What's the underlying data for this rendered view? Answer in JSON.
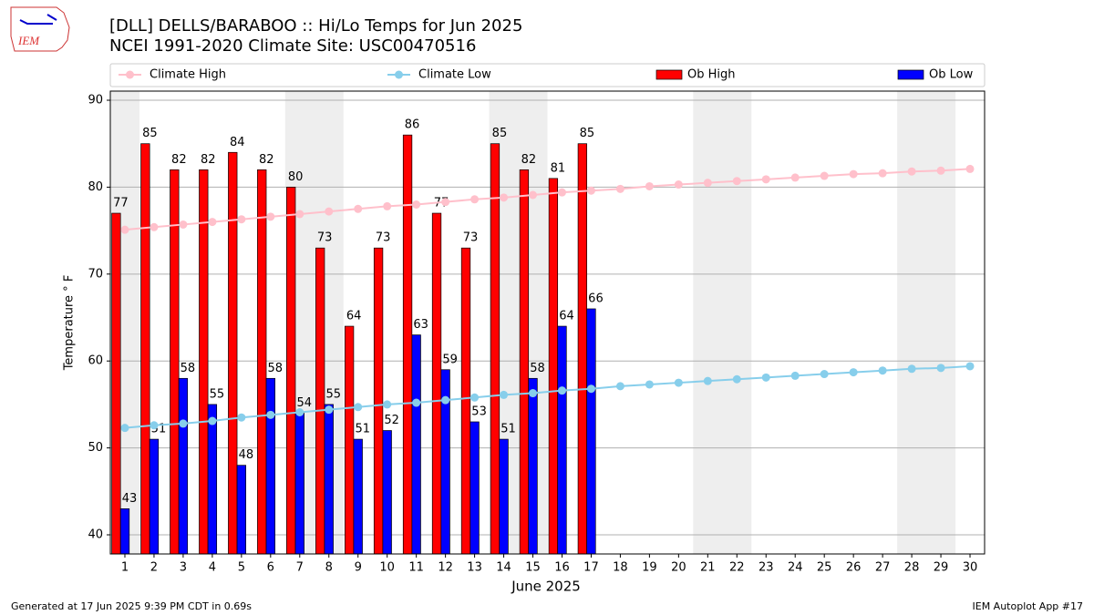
{
  "chart_data": {
    "type": "bar",
    "title": "[DLL] DELLS/BARABOO :: Hi/Lo Temps for Jun 2025",
    "subtitle": "NCEI 1991-2020 Climate Site: USC00470516",
    "logo_text": "IEM",
    "x_label": "June 2025",
    "y_label": "Temperature $^\\circ$F",
    "footer_left": "Generated at 17 Jun 2025 9:39 PM CDT in 0.69s",
    "footer_right": "IEM Autoplot App #17",
    "x": [
      1,
      2,
      3,
      4,
      5,
      6,
      7,
      8,
      9,
      10,
      11,
      12,
      13,
      14,
      15,
      16,
      17,
      18,
      19,
      20,
      21,
      22,
      23,
      24,
      25,
      26,
      27,
      28,
      29,
      30
    ],
    "xlim": [
      0.5,
      30.5
    ],
    "xticks": [
      1,
      2,
      3,
      4,
      5,
      6,
      7,
      8,
      9,
      10,
      11,
      12,
      13,
      14,
      15,
      16,
      17,
      18,
      19,
      20,
      21,
      22,
      23,
      24,
      25,
      26,
      27,
      28,
      29,
      30
    ],
    "ylim": [
      37.8,
      91.05
    ],
    "yticks": [
      40,
      50,
      60,
      70,
      80,
      90
    ],
    "grid": true,
    "shaded_spans": [
      [
        0.5,
        1.5
      ],
      [
        6.5,
        8.5
      ],
      [
        13.5,
        15.5
      ],
      [
        20.5,
        22.5
      ],
      [
        27.5,
        29.5
      ]
    ],
    "shade_color": "#eeeeee",
    "legend": "top",
    "series": [
      {
        "name": "Climate High",
        "type": "line",
        "color": "#ffc0cb",
        "values": [
          75.1,
          75.4,
          75.7,
          76.0,
          76.3,
          76.6,
          76.9,
          77.2,
          77.5,
          77.8,
          78.0,
          78.3,
          78.6,
          78.8,
          79.1,
          79.4,
          79.6,
          79.8,
          80.1,
          80.3,
          80.5,
          80.7,
          80.9,
          81.1,
          81.3,
          81.5,
          81.6,
          81.8,
          81.9,
          82.1
        ]
      },
      {
        "name": "Climate Low",
        "type": "line",
        "color": "#87ceeb",
        "values": [
          52.3,
          52.6,
          52.8,
          53.1,
          53.5,
          53.8,
          54.1,
          54.4,
          54.7,
          55.0,
          55.2,
          55.5,
          55.8,
          56.1,
          56.3,
          56.6,
          56.8,
          57.1,
          57.3,
          57.5,
          57.7,
          57.9,
          58.1,
          58.3,
          58.5,
          58.7,
          58.9,
          59.1,
          59.2,
          59.4
        ]
      },
      {
        "name": "Ob High",
        "type": "bar",
        "color": "#ff0000",
        "values": [
          77,
          85,
          82,
          82,
          84,
          82,
          80,
          73,
          64,
          73,
          86,
          77,
          73,
          85,
          82,
          81,
          85,
          null,
          null,
          null,
          null,
          null,
          null,
          null,
          null,
          null,
          null,
          null,
          null,
          null
        ]
      },
      {
        "name": "Ob Low",
        "type": "bar",
        "color": "#0000ff",
        "values": [
          43,
          51,
          58,
          55,
          48,
          58,
          54,
          55,
          51,
          52,
          63,
          59,
          53,
          51,
          58,
          64,
          66,
          null,
          null,
          null,
          null,
          null,
          null,
          null,
          null,
          null,
          null,
          null,
          null,
          null
        ]
      }
    ]
  }
}
